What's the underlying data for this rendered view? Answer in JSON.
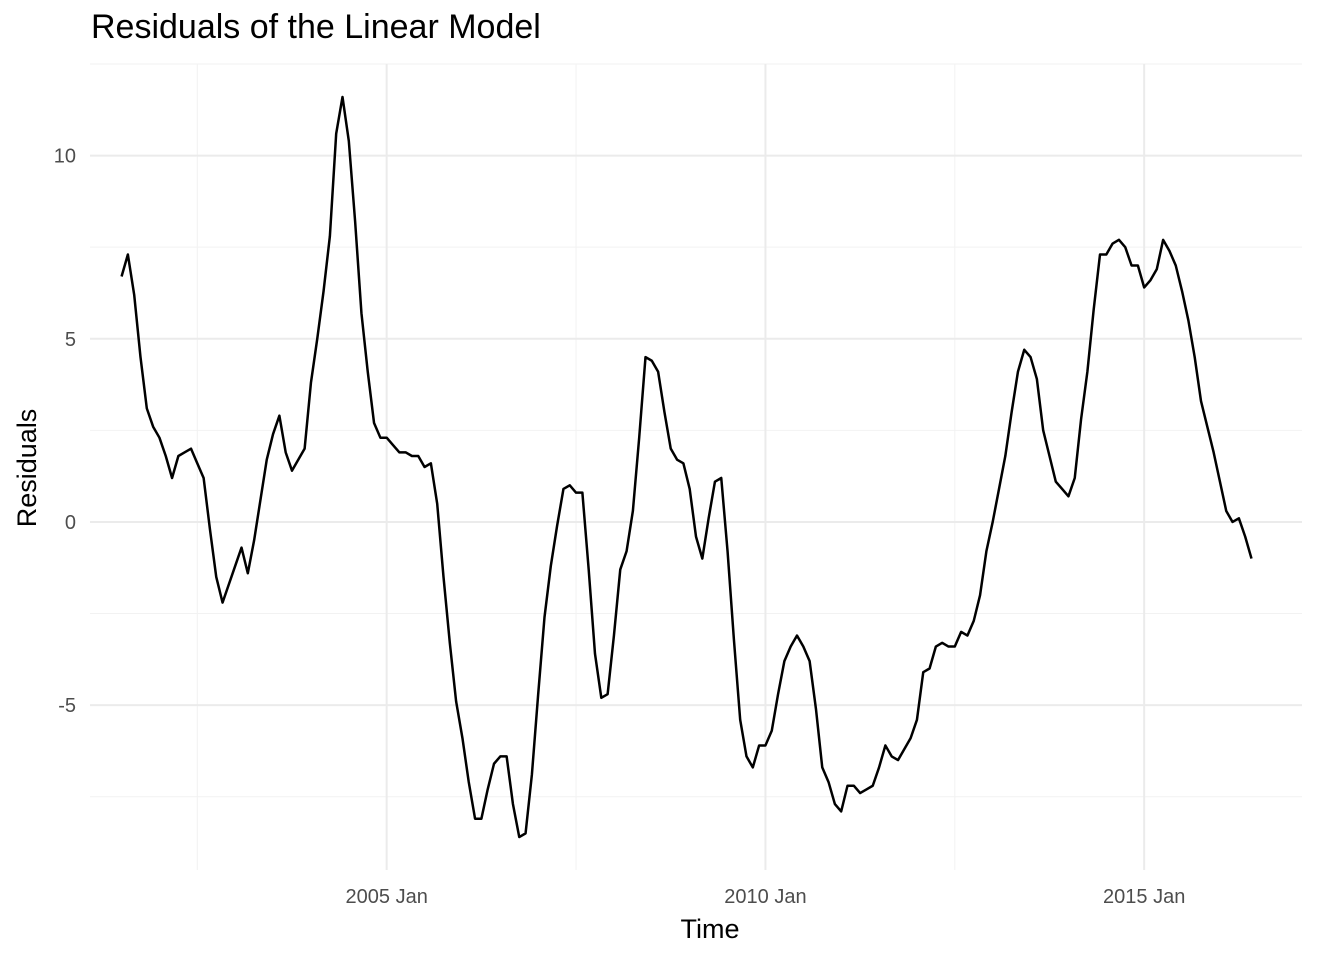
{
  "chart_data": {
    "type": "line",
    "title": "Residuals of the Linear Model",
    "xlabel": "Time",
    "ylabel": "Residuals",
    "x_start": "2001-07",
    "x_frequency": "monthly",
    "xlim": [
      "2001-02",
      "2017-02"
    ],
    "ylim": [
      -9.5,
      12.5
    ],
    "x_ticks": [
      {
        "value": "2005-01",
        "label": "2005 Jan"
      },
      {
        "value": "2010-01",
        "label": "2010 Jan"
      },
      {
        "value": "2015-01",
        "label": "2015 Jan"
      }
    ],
    "y_ticks": [
      {
        "value": -5,
        "label": "-5"
      },
      {
        "value": 0,
        "label": "0"
      },
      {
        "value": 5,
        "label": "5"
      },
      {
        "value": 10,
        "label": "10"
      }
    ],
    "grid": true,
    "legend": "none",
    "series": [
      {
        "values": [
          6.7,
          7.3,
          6.2,
          4.5,
          3.1,
          2.6,
          2.3,
          1.8,
          1.2,
          1.8,
          1.9,
          2.0,
          1.6,
          1.2,
          -0.2,
          -1.5,
          -2.2,
          -1.7,
          -1.2,
          -0.7,
          -1.4,
          -0.5,
          0.6,
          1.7,
          2.4,
          2.9,
          1.9,
          1.4,
          1.7,
          2.0,
          3.8,
          5.0,
          6.3,
          7.8,
          10.6,
          11.6,
          10.4,
          8.2,
          5.7,
          4.1,
          2.7,
          2.3,
          2.3,
          2.1,
          1.9,
          1.9,
          1.8,
          1.8,
          1.5,
          1.6,
          0.5,
          -1.5,
          -3.3,
          -4.9,
          -5.9,
          -7.1,
          -8.1,
          -8.1,
          -7.3,
          -6.6,
          -6.4,
          -6.4,
          -7.7,
          -8.6,
          -8.5,
          -6.9,
          -4.7,
          -2.6,
          -1.2,
          -0.1,
          0.9,
          1.0,
          0.8,
          0.8,
          -1.3,
          -3.6,
          -4.8,
          -4.7,
          -3.1,
          -1.3,
          -0.8,
          0.3,
          2.3,
          4.5,
          4.4,
          4.1,
          3.0,
          2.0,
          1.7,
          1.6,
          0.9,
          -0.4,
          -1.0,
          0.1,
          1.1,
          1.2,
          -0.8,
          -3.2,
          -5.4,
          -6.4,
          -6.7,
          -6.1,
          -6.1,
          -5.7,
          -4.7,
          -3.8,
          -3.4,
          -3.1,
          -3.4,
          -3.8,
          -5.1,
          -6.7,
          -7.1,
          -7.7,
          -7.9,
          -7.2,
          -7.2,
          -7.4,
          -7.3,
          -7.2,
          -6.7,
          -6.1,
          -6.4,
          -6.5,
          -6.2,
          -5.9,
          -5.4,
          -4.1,
          -4.0,
          -3.4,
          -3.3,
          -3.4,
          -3.4,
          -3.0,
          -3.1,
          -2.7,
          -2.0,
          -0.8,
          0.0,
          0.9,
          1.8,
          3.0,
          4.1,
          4.7,
          4.5,
          3.9,
          2.5,
          1.8,
          1.1,
          0.9,
          0.7,
          1.2,
          2.8,
          4.1,
          5.8,
          7.3,
          7.3,
          7.6,
          7.7,
          7.5,
          7.0,
          7.0,
          6.4,
          6.6,
          6.9,
          7.7,
          7.4,
          7.0,
          6.3,
          5.5,
          4.5,
          3.3,
          2.6,
          1.9,
          1.1,
          0.3,
          0.0,
          0.1,
          -0.4,
          -1.0
        ]
      }
    ]
  }
}
